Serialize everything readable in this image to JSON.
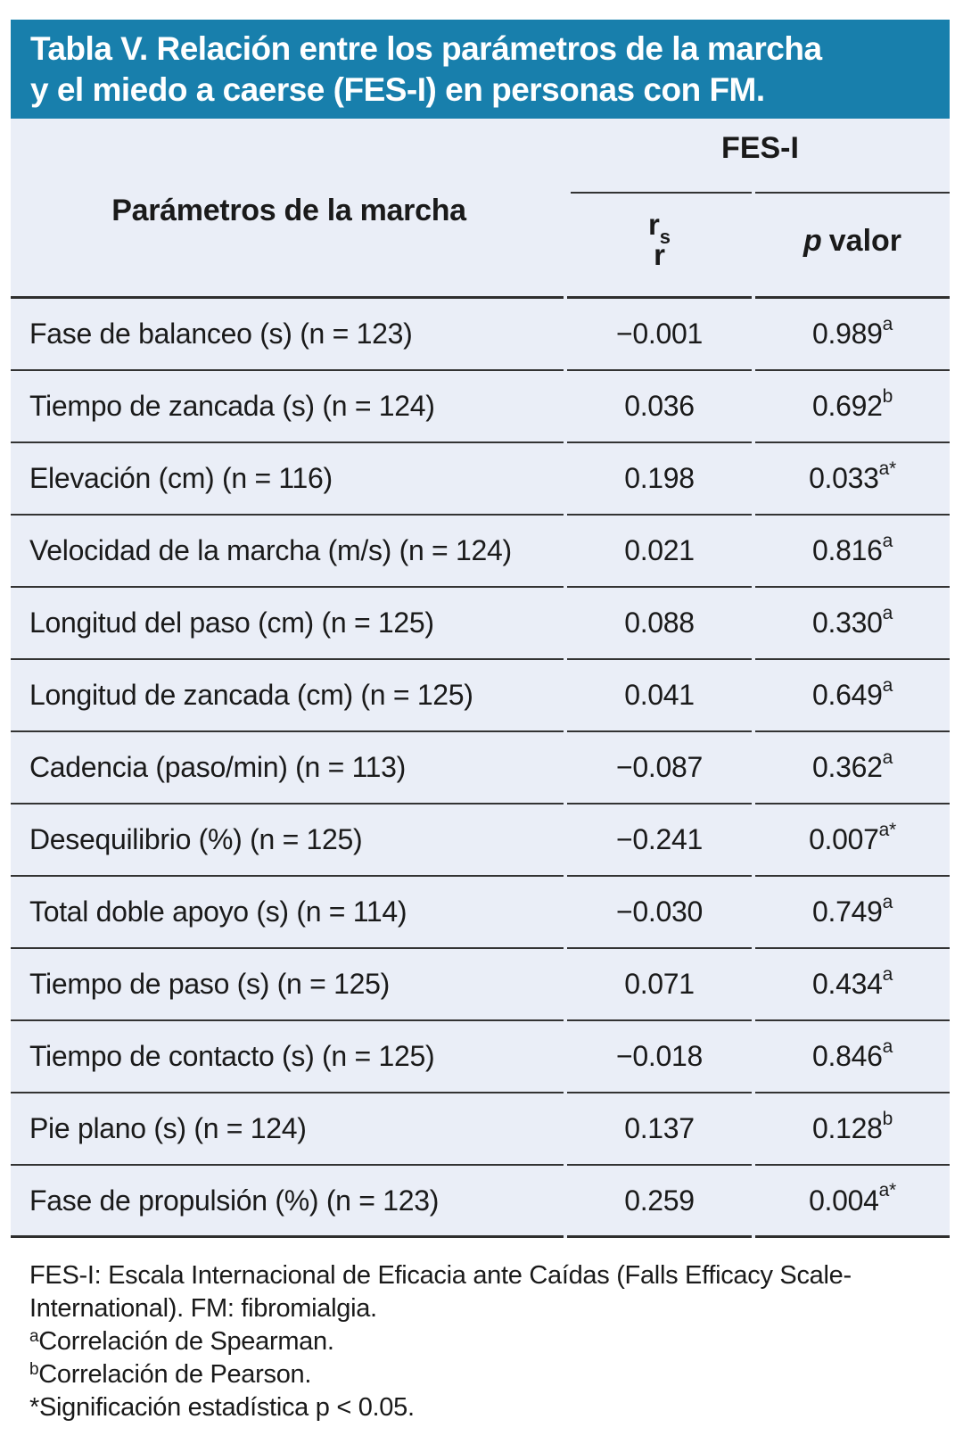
{
  "title": {
    "line1": "Tabla V. Relación entre los parámetros de la marcha",
    "line2": "y el miedo a caerse (FES-I) en personas con FM."
  },
  "colors": {
    "title_band_bg": "#187fac",
    "title_text": "#ffffff",
    "table_bg": "#eaeef7",
    "rule": "#333333",
    "body_text": "#1a1a1a"
  },
  "table": {
    "col_param_header": "Parámetros de la marcha",
    "group_header": "FES-I",
    "r_header": {
      "main": "r",
      "sub": "s",
      "second_line": "r"
    },
    "p_header": {
      "italic": "p",
      "rest": "valor"
    },
    "rows": [
      {
        "label": "Fase de balanceo (s) (n = 123)",
        "r": "−0.001",
        "p": "0.989",
        "p_sup": "a"
      },
      {
        "label": "Tiempo de zancada (s) (n = 124)",
        "r": "0.036",
        "p": "0.692",
        "p_sup": "b"
      },
      {
        "label": "Elevación (cm) (n = 116)",
        "r": "0.198",
        "p": "0.033",
        "p_sup": "a*"
      },
      {
        "label": "Velocidad de la marcha (m/s) (n = 124)",
        "r": "0.021",
        "p": "0.816",
        "p_sup": "a"
      },
      {
        "label": "Longitud del paso (cm) (n = 125)",
        "r": "0.088",
        "p": "0.330",
        "p_sup": "a"
      },
      {
        "label": "Longitud de zancada (cm) (n = 125)",
        "r": "0.041",
        "p": "0.649",
        "p_sup": "a"
      },
      {
        "label": "Cadencia (paso/min) (n = 113)",
        "r": "−0.087",
        "p": "0.362",
        "p_sup": "a"
      },
      {
        "label": "Desequilibrio (%) (n = 125)",
        "r": "−0.241",
        "p": "0.007",
        "p_sup": "a*"
      },
      {
        "label": "Total doble apoyo (s) (n = 114)",
        "r": "−0.030",
        "p": "0.749",
        "p_sup": "a"
      },
      {
        "label": "Tiempo de paso (s) (n = 125)",
        "r": "0.071",
        "p": "0.434",
        "p_sup": "a"
      },
      {
        "label": "Tiempo de contacto (s) (n = 125)",
        "r": "−0.018",
        "p": "0.846",
        "p_sup": "a"
      },
      {
        "label": "Pie plano (s) (n = 124)",
        "r": "0.137",
        "p": "0.128",
        "p_sup": "b"
      },
      {
        "label": "Fase de propulsión (%) (n = 123)",
        "r": "0.259",
        "p": "0.004",
        "p_sup": "a*"
      }
    ]
  },
  "footnotes": {
    "definition_line1": "FES-I: Escala Internacional de Eficacia ante Caídas (Falls Efficacy Scale-",
    "definition_line2": "International). FM: fibromialgia.",
    "spearman_sup": "a",
    "spearman_text": "Correlación de Spearman.",
    "pearson_sup": "b",
    "pearson_text": "Correlación de Pearson.",
    "significance": "*Significación estadística p < 0.05."
  }
}
